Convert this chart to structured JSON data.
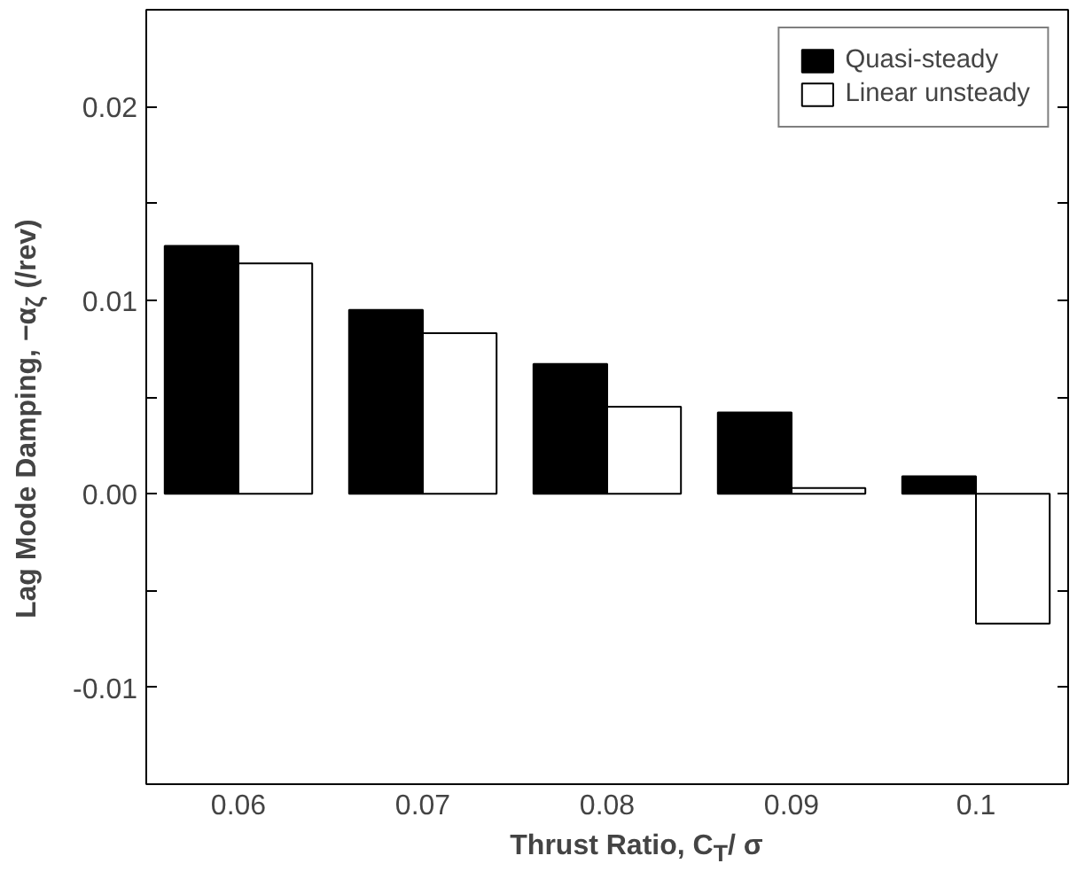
{
  "chart_data": {
    "type": "bar",
    "xlabel": "Thrust Ratio, C$_{T}$/ σ",
    "ylabel": "Lag Mode Damping, −α$_{ζ}$ (/rev)",
    "categories": [
      "0.06",
      "0.07",
      "0.08",
      "0.09",
      "0.1"
    ],
    "series": [
      {
        "name": "Quasi-steady",
        "color": "#000000",
        "values": [
          0.0128,
          0.0095,
          0.0067,
          0.0042,
          0.0009
        ]
      },
      {
        "name": "Linear unsteady",
        "color": "#ffffff",
        "values": [
          0.0119,
          0.0083,
          0.0045,
          0.0003,
          -0.0067
        ]
      }
    ],
    "ylim": [
      -0.015,
      0.025
    ],
    "yticks": [
      {
        "value": -0.015,
        "label": null
      },
      -0.01,
      {
        "value": -0.005,
        "label": null
      },
      {
        "value": 0,
        "label": "0.00"
      },
      {
        "value": 0.005,
        "label": null
      },
      0.01,
      {
        "value": 0.015,
        "label": null
      },
      0.02
    ],
    "legend": "top right",
    "grid": false
  }
}
